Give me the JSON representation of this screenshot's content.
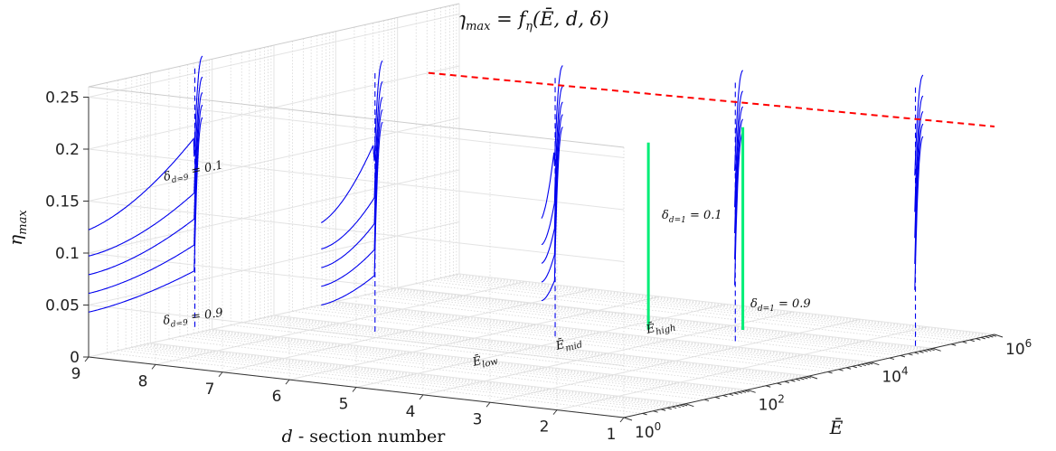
{
  "chart_data": {
    "type": "line",
    "projection": "3d",
    "title": "ηmax = fη(Ē, d, δ)",
    "title_parts": {
      "lhs": "η",
      "lhs_sub": "max",
      "eq": " = ",
      "f": "f",
      "f_sub": "η",
      "args": "(Ē, d, δ)"
    },
    "zlabel": {
      "base": "η",
      "sub": "max"
    },
    "xlabel": {
      "var": "d",
      "rest": " - section number"
    },
    "ylabel": "Ē",
    "z_ticks": [
      "0",
      "0.05",
      "0.1",
      "0.15",
      "0.2",
      "0.25"
    ],
    "z_tick_values": [
      0,
      0.05,
      0.1,
      0.15,
      0.2,
      0.25
    ],
    "zlim": [
      0,
      0.25
    ],
    "d_ticks": [
      "9",
      "8",
      "7",
      "6",
      "5",
      "4",
      "3",
      "2",
      "1"
    ],
    "d_range": [
      1,
      9
    ],
    "E_ticks": [
      {
        "base": "10",
        "exp": "0"
      },
      {
        "base": "10",
        "exp": "2"
      },
      {
        "base": "10",
        "exp": "4"
      },
      {
        "base": "10",
        "exp": "6"
      }
    ],
    "E_log10_range": [
      0,
      6
    ],
    "sections": [
      9,
      7,
      5,
      3,
      1
    ],
    "delta_values": [
      0.1,
      0.3,
      0.5,
      0.7,
      0.9
    ],
    "curve_plateau_values": [
      0.17,
      0.135,
      0.11,
      0.085,
      0.06
    ],
    "curve_final_value": 0.2,
    "max_envelope_value": 0.2,
    "envelope_line": {
      "from_section": 9,
      "to_section": 1,
      "at_log10E": 6,
      "value": 0.2,
      "style": "dashed",
      "color": "#ff0000"
    },
    "series_color": "#0000ee",
    "marker_color": "#00ee77",
    "annotations": {
      "delta_d9_top": {
        "base": "δ",
        "sub": "d=9",
        "rest": " = 0.1"
      },
      "delta_d9_bottom": {
        "base": "δ",
        "sub": "d=9",
        "rest": " = 0.9"
      },
      "delta_d1_top": {
        "base": "δ",
        "sub": "d=1",
        "rest": " = 0.1"
      },
      "delta_d1_bottom": {
        "base": "δ",
        "sub": "d=1",
        "rest": " = 0.9"
      },
      "E_low": {
        "base": "Ē",
        "sub": "low"
      },
      "E_mid": {
        "base": "Ē",
        "sub": "mid"
      },
      "E_high": {
        "base": "Ē",
        "sub": "high"
      }
    }
  }
}
